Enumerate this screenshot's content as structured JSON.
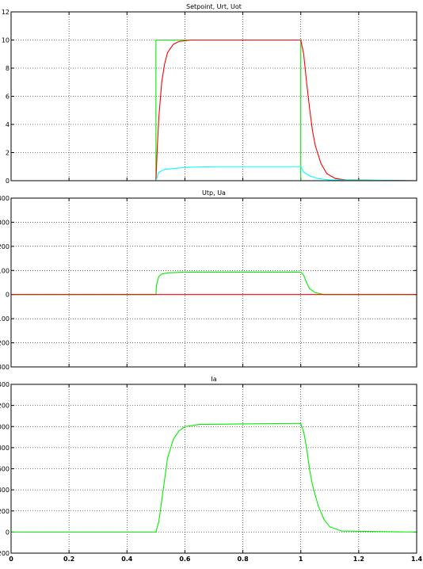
{
  "chart_data": [
    {
      "type": "line",
      "title": "Setpoint, Urt, Uot",
      "xlim": [
        0,
        1.4
      ],
      "ylim": [
        0,
        12
      ],
      "yticks": [
        "0",
        "2",
        "4",
        "6",
        "8",
        "10",
        "12"
      ],
      "grid": true,
      "series": [
        {
          "color": "#00ee00",
          "points": [
            [
              0,
              0
            ],
            [
              0.5,
              0
            ],
            [
              0.5,
              10
            ],
            [
              1.0,
              10
            ],
            [
              1.0,
              0
            ],
            [
              1.4,
              0
            ]
          ]
        },
        {
          "color": "#ff0000",
          "points": [
            [
              0,
              0
            ],
            [
              0.5,
              0
            ],
            [
              0.505,
              2.5
            ],
            [
              0.51,
              4.5
            ],
            [
              0.52,
              7.0
            ],
            [
              0.53,
              8.3
            ],
            [
              0.54,
              9.1
            ],
            [
              0.56,
              9.7
            ],
            [
              0.58,
              9.9
            ],
            [
              0.62,
              10
            ],
            [
              1.0,
              10
            ],
            [
              1.01,
              9.0
            ],
            [
              1.02,
              7.0
            ],
            [
              1.03,
              5.2
            ],
            [
              1.04,
              3.6
            ],
            [
              1.05,
              2.5
            ],
            [
              1.07,
              1.2
            ],
            [
              1.09,
              0.5
            ],
            [
              1.12,
              0.15
            ],
            [
              1.16,
              0.05
            ],
            [
              1.4,
              0
            ]
          ]
        },
        {
          "color": "#00ffff",
          "points": [
            [
              0,
              0
            ],
            [
              0.5,
              0
            ],
            [
              0.51,
              0.6
            ],
            [
              0.53,
              0.8
            ],
            [
              0.6,
              0.95
            ],
            [
              0.7,
              1.0
            ],
            [
              1.0,
              1.0
            ],
            [
              1.01,
              0.6
            ],
            [
              1.03,
              0.35
            ],
            [
              1.06,
              0.15
            ],
            [
              1.1,
              0.05
            ],
            [
              1.4,
              0
            ]
          ]
        }
      ]
    },
    {
      "type": "line",
      "title": "Utp, Ua",
      "xlim": [
        0,
        1.4
      ],
      "ylim": [
        -300,
        400
      ],
      "yticks": [
        "-300",
        "-200",
        "-100",
        "0",
        "100",
        "200",
        "300",
        "400"
      ],
      "grid": true,
      "series": [
        {
          "color": "#00ee00",
          "points": [
            [
              0,
              0
            ],
            [
              0.5,
              0
            ],
            [
              0.502,
              40
            ],
            [
              0.51,
              75
            ],
            [
              0.52,
              85
            ],
            [
              0.54,
              90
            ],
            [
              0.6,
              93
            ],
            [
              1.0,
              93
            ],
            [
              1.01,
              80
            ],
            [
              1.02,
              50
            ],
            [
              1.03,
              25
            ],
            [
              1.05,
              8
            ],
            [
              1.08,
              0
            ],
            [
              1.4,
              0
            ]
          ]
        },
        {
          "color": "#ff0000",
          "points": [
            [
              0,
              0
            ],
            [
              1.4,
              0
            ]
          ]
        }
      ]
    },
    {
      "type": "line",
      "title": "Ia",
      "xlim": [
        0,
        1.4
      ],
      "ylim": [
        -200,
        1400
      ],
      "yticks": [
        "-200",
        "0",
        "200",
        "400",
        "600",
        "800",
        "1000",
        "1200",
        "1400"
      ],
      "xticks": [
        "0",
        "0.2",
        "0.4",
        "0.6",
        "0.8",
        "1",
        "1.2",
        "1.4"
      ],
      "grid": true,
      "series": [
        {
          "color": "#00ee00",
          "points": [
            [
              0,
              0
            ],
            [
              0.5,
              0
            ],
            [
              0.51,
              100
            ],
            [
              0.52,
              300
            ],
            [
              0.53,
              500
            ],
            [
              0.54,
              700
            ],
            [
              0.56,
              880
            ],
            [
              0.58,
              960
            ],
            [
              0.6,
              1000
            ],
            [
              0.65,
              1020
            ],
            [
              0.8,
              1025
            ],
            [
              1.0,
              1030
            ],
            [
              1.01,
              950
            ],
            [
              1.02,
              800
            ],
            [
              1.03,
              600
            ],
            [
              1.04,
              450
            ],
            [
              1.06,
              250
            ],
            [
              1.08,
              120
            ],
            [
              1.1,
              50
            ],
            [
              1.14,
              10
            ],
            [
              1.4,
              0
            ]
          ]
        }
      ]
    }
  ]
}
